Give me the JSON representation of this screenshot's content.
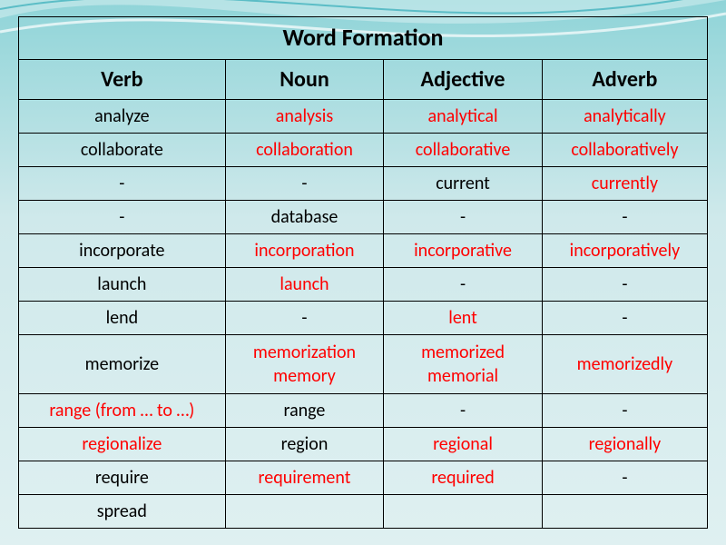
{
  "title": "Word Formation",
  "columns": [
    "Verb",
    "Noun",
    "Adjective",
    "Adverb"
  ],
  "colors": {
    "highlight": "#ff0000",
    "normal": "#000000",
    "border": "#000000",
    "bg_top": "#8fd4d8",
    "bg_mid": "#cfe9eb"
  },
  "font": {
    "family": "Calibri",
    "title_size": 26,
    "header_size": 24,
    "cell_size": 20
  },
  "rows": [
    [
      {
        "t": "analyze",
        "c": "blk"
      },
      {
        "t": "analysis",
        "c": "red"
      },
      {
        "t": "analytical",
        "c": "red"
      },
      {
        "t": "analytically",
        "c": "red"
      }
    ],
    [
      {
        "t": "collaborate",
        "c": "blk"
      },
      {
        "t": "collaboration",
        "c": "red"
      },
      {
        "t": "collaborative",
        "c": "red"
      },
      {
        "t": "collaboratively",
        "c": "red"
      }
    ],
    [
      {
        "t": "-",
        "c": "blk"
      },
      {
        "t": "-",
        "c": "blk"
      },
      {
        "t": "current",
        "c": "blk"
      },
      {
        "t": "currently",
        "c": "red"
      }
    ],
    [
      {
        "t": "-",
        "c": "blk"
      },
      {
        "t": "database",
        "c": "blk"
      },
      {
        "t": "-",
        "c": "blk"
      },
      {
        "t": "-",
        "c": "blk"
      }
    ],
    [
      {
        "t": "incorporate",
        "c": "blk"
      },
      {
        "t": "incorporation",
        "c": "red"
      },
      {
        "t": "incorporative",
        "c": "red"
      },
      {
        "t": "incorporatively",
        "c": "red"
      }
    ],
    [
      {
        "t": "launch",
        "c": "blk"
      },
      {
        "t": "launch",
        "c": "red"
      },
      {
        "t": "-",
        "c": "blk"
      },
      {
        "t": "-",
        "c": "blk"
      }
    ],
    [
      {
        "t": "lend",
        "c": "blk"
      },
      {
        "t": "-",
        "c": "blk"
      },
      {
        "t": "lent",
        "c": "red"
      },
      {
        "t": "-",
        "c": "blk"
      }
    ],
    [
      {
        "t": "memorize",
        "c": "blk"
      },
      {
        "t": "memorization\nmemory",
        "c": "red"
      },
      {
        "t": "memorized\nmemorial",
        "c": "red"
      },
      {
        "t": "memorizedly",
        "c": "red"
      }
    ],
    [
      {
        "t": "range (from … to …)",
        "c": "red"
      },
      {
        "t": "range",
        "c": "blk"
      },
      {
        "t": "-",
        "c": "blk"
      },
      {
        "t": "-",
        "c": "blk"
      }
    ],
    [
      {
        "t": "regionalize",
        "c": "red"
      },
      {
        "t": "region",
        "c": "blk"
      },
      {
        "t": "regional",
        "c": "red"
      },
      {
        "t": "regionally",
        "c": "red"
      }
    ],
    [
      {
        "t": "require",
        "c": "blk"
      },
      {
        "t": "requirement",
        "c": "red"
      },
      {
        "t": "required",
        "c": "red"
      },
      {
        "t": "-",
        "c": "blk"
      }
    ],
    [
      {
        "t": "spread",
        "c": "blk"
      },
      {
        "t": "",
        "c": "blk"
      },
      {
        "t": "",
        "c": "blk"
      },
      {
        "t": "",
        "c": "blk"
      }
    ]
  ]
}
